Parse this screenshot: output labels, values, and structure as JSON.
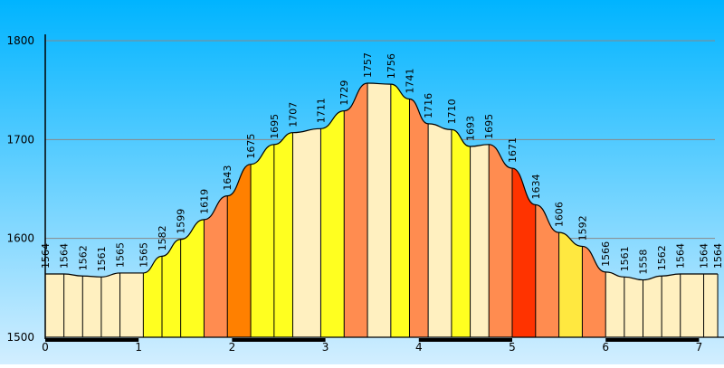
{
  "chart_data": {
    "type": "area",
    "title": "",
    "xlabel": "",
    "ylabel": "",
    "ylim": [
      1500,
      1800
    ],
    "xlim": [
      0,
      7.2
    ],
    "y_ticks": [
      "1500",
      "1600",
      "1700",
      "1800"
    ],
    "x_ticks": [
      "0",
      "1",
      "2",
      "3",
      "4",
      "5",
      "6",
      "7"
    ],
    "grid": "horizontal",
    "x": [
      0,
      0.2,
      0.4,
      0.6,
      0.8,
      1.05,
      1.25,
      1.45,
      1.7,
      1.95,
      2.2,
      2.45,
      2.65,
      2.95,
      3.2,
      3.45,
      3.7,
      3.9,
      4.1,
      4.35,
      4.55,
      4.75,
      5.0,
      5.25,
      5.5,
      5.75,
      6.0,
      6.2,
      6.4,
      6.6,
      6.8,
      7.05,
      7.2
    ],
    "elevations": [
      1564,
      1564,
      1562,
      1561,
      1565,
      1565,
      1582,
      1599,
      1619,
      1643,
      1675,
      1695,
      1707,
      1711,
      1729,
      1757,
      1756,
      1741,
      1716,
      1710,
      1693,
      1695,
      1671,
      1634,
      1606,
      1592,
      1566,
      1561,
      1558,
      1562,
      1564,
      1564,
      1564
    ],
    "labels": [
      "1564",
      "1564",
      "1562",
      "1561",
      "1565",
      "1565",
      "1582",
      "1599",
      "1619",
      "1643",
      "1675",
      "1695",
      "1707",
      "1711",
      "1729",
      "1757",
      "1756",
      "1741",
      "1716",
      "1710",
      "1693",
      "1695",
      "1671",
      "1634",
      "1606",
      "1592",
      "1566",
      "1561",
      "1558",
      "1562",
      "1564",
      "1564",
      "1564"
    ],
    "segment_colors": [
      "#fff0c0",
      "#fff0c0",
      "#fff0c0",
      "#fff0c0",
      "#fff0c0",
      "#ffff20",
      "#ffff20",
      "#ffff20",
      "#ff8c50",
      "#ff8000",
      "#ffff20",
      "#ffff20",
      "#fff0c0",
      "#ffff20",
      "#ff8c50",
      "#fff0c0",
      "#ffff20",
      "#ff8c50",
      "#fff0c0",
      "#ffff20",
      "#fff0c0",
      "#ff8c50",
      "#ff3300",
      "#ff8c50",
      "#ffe840",
      "#ff8c50",
      "#fff0c0",
      "#fff0c0",
      "#fff0c0",
      "#fff0c0",
      "#fff0c0",
      "#fff0c0"
    ],
    "colors": {
      "sky_top": "#00b4ff",
      "sky_bottom": "#d2eeff",
      "grid": "#888888",
      "outline": "#000000"
    }
  }
}
